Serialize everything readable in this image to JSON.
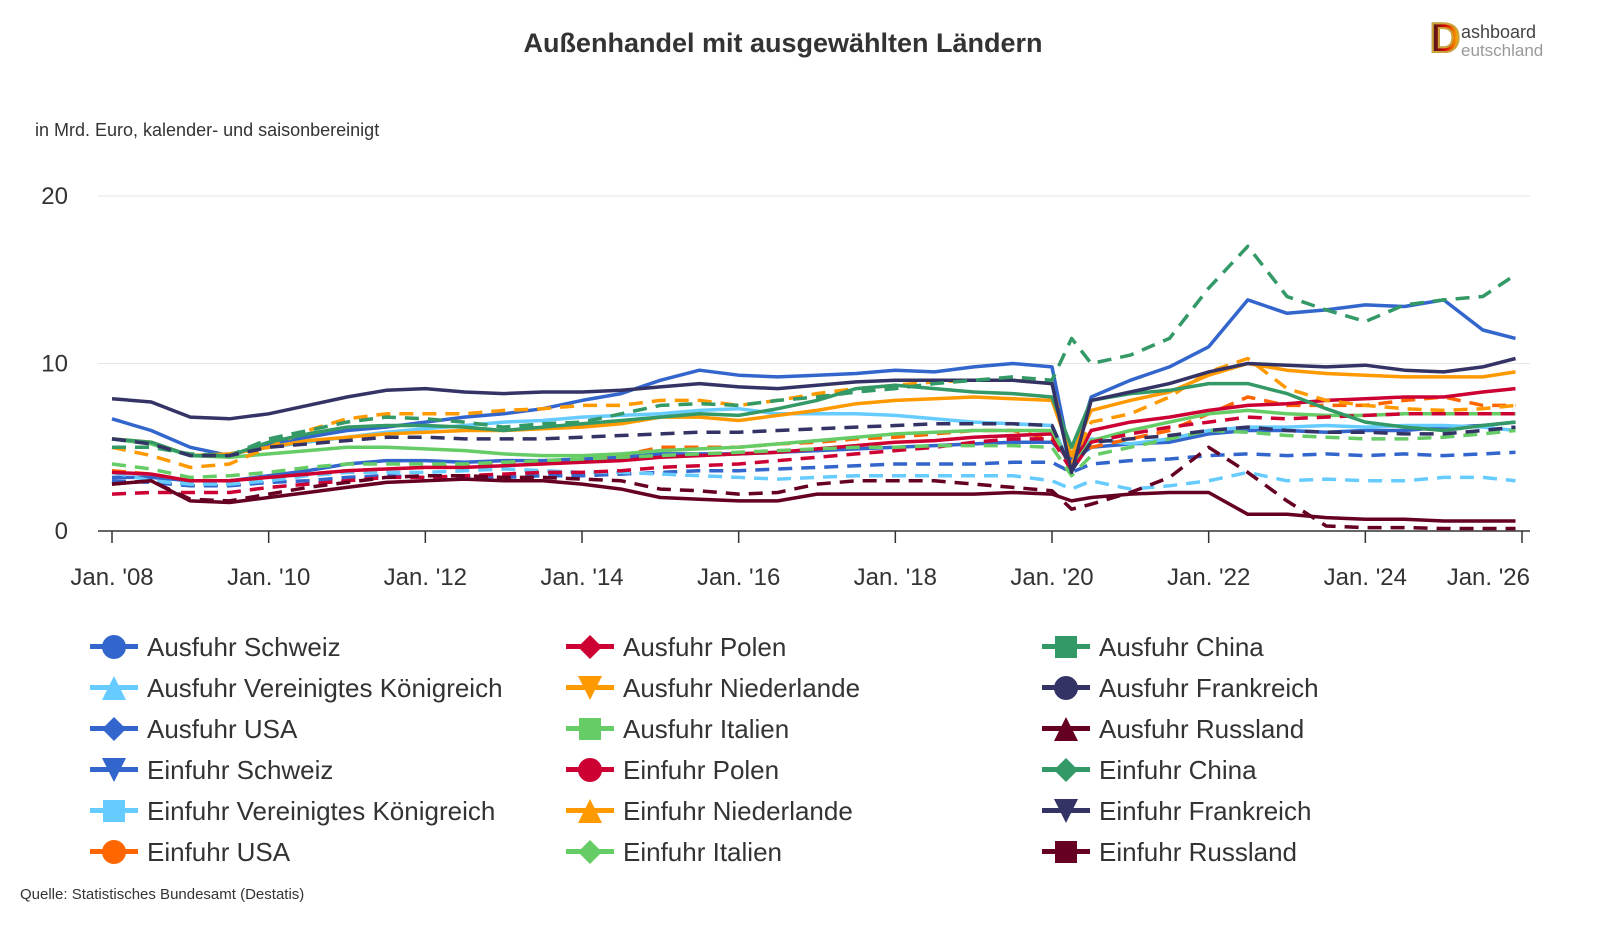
{
  "title": "Außenhandel mit ausgewählten Ländern",
  "subtitle": "in Mrd. Euro, kalender- und saisonbereinigt",
  "source": "Quelle: Statistisches Bundesamt (Destatis)",
  "logo": {
    "line1": "ashboard",
    "line2": "eutschland",
    "initial": "D"
  },
  "chart_data": {
    "type": "line",
    "title": "Außenhandel mit ausgewählten Ländern",
    "ylabel": "in Mrd. Euro, kalender- und saisonbereinigt",
    "ylim": [
      0,
      20
    ],
    "yticks": [
      "0",
      "10",
      "20"
    ],
    "xlim": [
      "2008-01",
      "2026-01"
    ],
    "xticks": [
      {
        "date": "2008-01",
        "label": "Jan. '08"
      },
      {
        "date": "2010-01",
        "label": "Jan. '10"
      },
      {
        "date": "2012-01",
        "label": "Jan. '12"
      },
      {
        "date": "2014-01",
        "label": "Jan. '14"
      },
      {
        "date": "2016-01",
        "label": "Jan. '16"
      },
      {
        "date": "2018-01",
        "label": "Jan. '18"
      },
      {
        "date": "2020-01",
        "label": "Jan. '20"
      },
      {
        "date": "2022-01",
        "label": "Jan. '22"
      },
      {
        "date": "2024-01",
        "label": "Jan. '24"
      },
      {
        "date": "2026-01",
        "label": "Jan. '26"
      }
    ],
    "grid": true,
    "legend_position": "bottom",
    "x": [
      "2008-01",
      "2008-07",
      "2009-01",
      "2009-07",
      "2010-01",
      "2010-07",
      "2011-01",
      "2011-07",
      "2012-01",
      "2012-07",
      "2013-01",
      "2013-07",
      "2014-01",
      "2014-07",
      "2015-01",
      "2015-07",
      "2016-01",
      "2016-07",
      "2017-01",
      "2017-07",
      "2018-01",
      "2018-07",
      "2019-01",
      "2019-07",
      "2020-01",
      "2020-04",
      "2020-07",
      "2021-01",
      "2021-07",
      "2022-01",
      "2022-07",
      "2023-01",
      "2023-07",
      "2024-01",
      "2024-07",
      "2025-01",
      "2025-07",
      "2025-12"
    ],
    "series": [
      {
        "name": "Ausfuhr Schweiz",
        "color": "#3366cc",
        "dash": false,
        "marker": "circle",
        "values": [
          3.2,
          3.2,
          3.0,
          3.0,
          3.3,
          3.6,
          4.0,
          4.2,
          4.2,
          4.1,
          4.2,
          4.2,
          4.3,
          4.4,
          4.6,
          4.6,
          4.6,
          4.7,
          4.8,
          4.9,
          5.0,
          5.1,
          5.2,
          5.3,
          5.3,
          4.2,
          5.0,
          5.2,
          5.3,
          5.8,
          6.0,
          6.0,
          5.9,
          6.0,
          6.0,
          6.2,
          6.3,
          6.5
        ]
      },
      {
        "name": "Ausfuhr Vereinigtes Königreich",
        "color": "#66ccff",
        "dash": false,
        "marker": "triangle",
        "values": [
          5.5,
          5.2,
          4.5,
          4.6,
          5.0,
          5.3,
          5.6,
          5.9,
          6.1,
          6.3,
          6.5,
          6.6,
          6.8,
          6.9,
          7.0,
          7.2,
          7.3,
          7.0,
          7.0,
          7.0,
          6.9,
          6.7,
          6.5,
          6.4,
          6.3,
          3.8,
          5.5,
          5.2,
          5.5,
          6.0,
          6.2,
          6.2,
          6.3,
          6.2,
          6.3,
          6.3,
          6.2,
          6.0
        ]
      },
      {
        "name": "Ausfuhr USA",
        "color": "#3366cc",
        "dash": false,
        "marker": "diamond",
        "values": [
          6.7,
          6.0,
          5.0,
          4.5,
          5.2,
          5.6,
          6.0,
          6.2,
          6.5,
          6.8,
          7.0,
          7.3,
          7.8,
          8.2,
          9.0,
          9.6,
          9.3,
          9.2,
          9.3,
          9.4,
          9.6,
          9.5,
          9.8,
          10.0,
          9.8,
          4.0,
          8.0,
          9.0,
          9.8,
          11.0,
          13.8,
          13.0,
          13.2,
          13.5,
          13.4,
          13.8,
          12.0,
          11.5
        ]
      },
      {
        "name": "Einfuhr Schweiz",
        "color": "#3366cc",
        "dash": true,
        "marker": "triangle-down",
        "values": [
          3.0,
          2.9,
          2.7,
          2.7,
          2.9,
          3.0,
          3.2,
          3.3,
          3.2,
          3.2,
          3.2,
          3.3,
          3.3,
          3.4,
          3.5,
          3.6,
          3.6,
          3.7,
          3.8,
          3.9,
          4.0,
          4.0,
          4.0,
          4.1,
          4.1,
          3.5,
          4.0,
          4.2,
          4.3,
          4.5,
          4.6,
          4.5,
          4.6,
          4.5,
          4.6,
          4.5,
          4.6,
          4.7
        ]
      },
      {
        "name": "Einfuhr Vereinigtes Königreich",
        "color": "#66ccff",
        "dash": true,
        "marker": "square",
        "values": [
          3.5,
          3.0,
          2.8,
          2.8,
          3.0,
          3.3,
          3.5,
          3.5,
          3.5,
          3.6,
          3.7,
          3.6,
          3.5,
          3.5,
          3.4,
          3.3,
          3.2,
          3.1,
          3.2,
          3.3,
          3.3,
          3.3,
          3.3,
          3.3,
          3.0,
          2.5,
          3.0,
          2.5,
          2.7,
          3.0,
          3.5,
          3.0,
          3.1,
          3.0,
          3.0,
          3.2,
          3.2,
          3.0
        ]
      },
      {
        "name": "Einfuhr USA",
        "color": "#ff6600",
        "dash": true,
        "marker": "circle",
        "values": [
          3.6,
          3.4,
          3.0,
          3.0,
          3.2,
          3.4,
          3.6,
          3.7,
          3.8,
          3.9,
          4.0,
          4.1,
          4.2,
          4.5,
          5.0,
          5.0,
          5.0,
          5.2,
          5.3,
          5.5,
          5.6,
          5.8,
          6.0,
          6.0,
          5.5,
          4.5,
          5.0,
          5.5,
          6.0,
          7.0,
          8.0,
          7.5,
          7.5,
          7.5,
          7.8,
          8.0,
          7.5,
          7.5
        ]
      },
      {
        "name": "Ausfuhr Polen",
        "color": "#cc0033",
        "dash": false,
        "marker": "diamond",
        "values": [
          3.5,
          3.4,
          3.0,
          3.0,
          3.2,
          3.4,
          3.6,
          3.7,
          3.8,
          3.8,
          3.9,
          4.0,
          4.1,
          4.2,
          4.4,
          4.5,
          4.6,
          4.7,
          4.9,
          5.1,
          5.3,
          5.4,
          5.6,
          5.7,
          5.8,
          3.8,
          6.0,
          6.5,
          6.8,
          7.2,
          7.5,
          7.6,
          7.8,
          7.9,
          8.0,
          8.0,
          8.3,
          8.5
        ]
      },
      {
        "name": "Ausfuhr Niederlande",
        "color": "#ff9900",
        "dash": false,
        "marker": "triangle-down",
        "values": [
          5.5,
          5.3,
          4.5,
          4.6,
          5.0,
          5.4,
          5.6,
          5.8,
          5.9,
          6.0,
          6.0,
          6.1,
          6.2,
          6.4,
          6.8,
          6.8,
          6.6,
          6.9,
          7.2,
          7.6,
          7.8,
          7.9,
          8.0,
          7.9,
          7.8,
          4.5,
          7.2,
          7.8,
          8.3,
          9.3,
          10.0,
          9.6,
          9.4,
          9.3,
          9.2,
          9.2,
          9.2,
          9.5
        ]
      },
      {
        "name": "Ausfuhr Italien",
        "color": "#66cc66",
        "dash": false,
        "marker": "square",
        "values": [
          5.5,
          5.2,
          4.5,
          4.4,
          4.6,
          4.8,
          5.0,
          5.0,
          4.9,
          4.8,
          4.6,
          4.5,
          4.5,
          4.6,
          4.8,
          4.9,
          5.0,
          5.2,
          5.4,
          5.6,
          5.8,
          5.9,
          6.0,
          6.0,
          6.0,
          3.8,
          5.4,
          6.0,
          6.5,
          7.0,
          7.2,
          7.0,
          6.9,
          6.9,
          7.0,
          7.0,
          7.0,
          7.0
        ]
      },
      {
        "name": "Einfuhr Polen",
        "color": "#cc0033",
        "dash": true,
        "marker": "circle",
        "values": [
          2.2,
          2.3,
          2.3,
          2.3,
          2.6,
          2.8,
          3.0,
          3.2,
          3.2,
          3.3,
          3.4,
          3.5,
          3.5,
          3.6,
          3.8,
          3.9,
          4.0,
          4.2,
          4.4,
          4.6,
          4.8,
          5.0,
          5.3,
          5.5,
          5.5,
          3.6,
          5.3,
          5.8,
          6.2,
          6.5,
          6.8,
          6.7,
          6.8,
          6.9,
          7.0,
          7.0,
          7.0,
          7.0
        ]
      },
      {
        "name": "Einfuhr Niederlande",
        "color": "#ff9900",
        "dash": true,
        "marker": "triangle",
        "values": [
          5.0,
          4.5,
          3.8,
          4.0,
          5.0,
          6.0,
          6.7,
          7.0,
          7.0,
          7.0,
          7.2,
          7.3,
          7.5,
          7.5,
          7.8,
          7.8,
          7.5,
          7.8,
          8.2,
          8.5,
          8.7,
          8.9,
          9.0,
          9.0,
          8.8,
          4.0,
          6.5,
          7.0,
          8.0,
          9.5,
          10.3,
          8.5,
          7.8,
          7.5,
          7.3,
          7.2,
          7.3,
          7.5
        ]
      },
      {
        "name": "Einfuhr Italien",
        "color": "#66cc66",
        "dash": true,
        "marker": "diamond",
        "values": [
          4.0,
          3.7,
          3.2,
          3.3,
          3.5,
          3.8,
          4.0,
          4.0,
          4.0,
          4.0,
          4.1,
          4.2,
          4.3,
          4.4,
          4.5,
          4.6,
          4.7,
          4.8,
          4.9,
          5.0,
          5.0,
          5.1,
          5.1,
          5.1,
          5.0,
          3.3,
          4.5,
          5.0,
          5.5,
          6.0,
          5.9,
          5.7,
          5.6,
          5.5,
          5.5,
          5.6,
          5.8,
          6.0
        ]
      },
      {
        "name": "Ausfuhr China",
        "color": "#339966",
        "dash": false,
        "marker": "square",
        "values": [
          5.5,
          5.3,
          4.5,
          4.5,
          5.3,
          5.8,
          6.2,
          6.3,
          6.3,
          6.2,
          6.0,
          6.2,
          6.4,
          6.6,
          6.8,
          7.0,
          6.9,
          7.3,
          7.8,
          8.5,
          8.7,
          8.5,
          8.3,
          8.2,
          8.0,
          5.0,
          7.8,
          8.2,
          8.4,
          8.8,
          8.8,
          8.2,
          7.3,
          6.5,
          6.2,
          6.0,
          6.3,
          6.5
        ]
      },
      {
        "name": "Ausfuhr Frankreich",
        "color": "#333366",
        "dash": false,
        "marker": "circle",
        "values": [
          7.9,
          7.7,
          6.8,
          6.7,
          7.0,
          7.5,
          8.0,
          8.4,
          8.5,
          8.3,
          8.2,
          8.3,
          8.3,
          8.4,
          8.6,
          8.8,
          8.6,
          8.5,
          8.7,
          8.9,
          9.0,
          9.0,
          9.0,
          9.0,
          8.8,
          3.5,
          7.8,
          8.3,
          8.8,
          9.5,
          10.0,
          9.9,
          9.8,
          9.9,
          9.6,
          9.5,
          9.8,
          10.3
        ]
      },
      {
        "name": "Ausfuhr Russland",
        "color": "#660022",
        "dash": false,
        "marker": "triangle",
        "values": [
          2.8,
          3.0,
          1.8,
          1.7,
          2.0,
          2.3,
          2.6,
          2.9,
          3.0,
          3.1,
          3.0,
          3.0,
          2.8,
          2.5,
          2.0,
          1.9,
          1.8,
          1.8,
          2.2,
          2.2,
          2.2,
          2.2,
          2.2,
          2.3,
          2.2,
          1.8,
          2.0,
          2.2,
          2.3,
          2.3,
          1.0,
          1.0,
          0.8,
          0.7,
          0.7,
          0.6,
          0.6,
          0.6
        ]
      },
      {
        "name": "Einfuhr China",
        "color": "#339966",
        "dash": true,
        "marker": "diamond",
        "values": [
          5.0,
          5.0,
          4.6,
          4.5,
          5.5,
          6.0,
          6.5,
          6.8,
          6.7,
          6.5,
          6.2,
          6.4,
          6.5,
          7.0,
          7.5,
          7.6,
          7.5,
          7.8,
          8.0,
          8.3,
          8.5,
          8.8,
          9.0,
          9.2,
          9.0,
          11.5,
          10.0,
          10.5,
          11.5,
          14.5,
          17.0,
          14.0,
          13.2,
          12.5,
          13.5,
          13.8,
          14.0,
          15.3
        ]
      },
      {
        "name": "Einfuhr Frankreich",
        "color": "#333366",
        "dash": true,
        "marker": "triangle-down",
        "values": [
          5.5,
          5.2,
          4.5,
          4.5,
          5.0,
          5.2,
          5.4,
          5.6,
          5.6,
          5.5,
          5.5,
          5.5,
          5.6,
          5.7,
          5.8,
          5.9,
          5.9,
          6.0,
          6.1,
          6.2,
          6.3,
          6.4,
          6.4,
          6.4,
          6.3,
          3.6,
          5.3,
          5.5,
          5.7,
          6.0,
          6.2,
          6.0,
          5.9,
          5.9,
          5.8,
          5.8,
          6.0,
          6.2
        ]
      },
      {
        "name": "Einfuhr Russland",
        "color": "#660022",
        "dash": true,
        "marker": "square",
        "values": [
          2.8,
          3.0,
          1.9,
          1.8,
          2.2,
          2.6,
          2.9,
          3.2,
          3.3,
          3.3,
          3.2,
          3.2,
          3.1,
          3.0,
          2.5,
          2.4,
          2.2,
          2.3,
          2.8,
          3.0,
          3.0,
          3.0,
          2.8,
          2.6,
          2.4,
          1.3,
          1.6,
          2.3,
          3.2,
          5.0,
          3.5,
          1.8,
          0.3,
          0.2,
          0.2,
          0.15,
          0.15,
          0.15
        ]
      }
    ]
  }
}
